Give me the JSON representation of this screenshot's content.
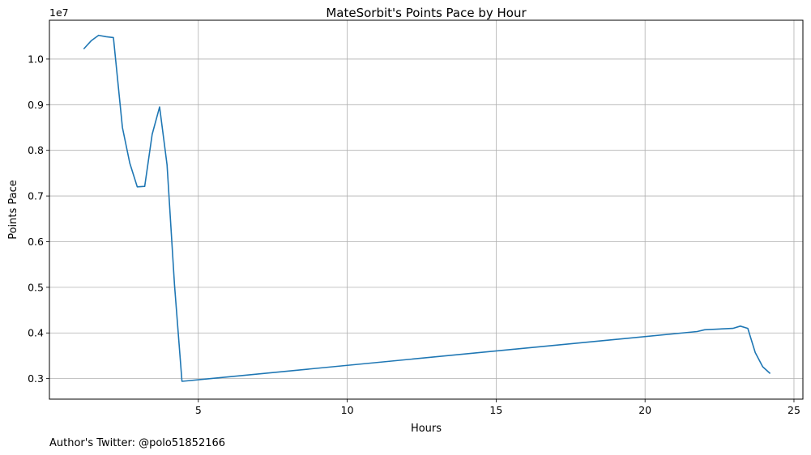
{
  "chart_data": {
    "type": "line",
    "title": "MateSorbit's Points Pace by Hour",
    "xlabel": "Hours",
    "ylabel": "Points Pace",
    "y_offset_text": "1e7",
    "footer": "Author's Twitter: @polo51852166",
    "xlim": [
      0.0,
      25.3
    ],
    "ylim": [
      2550000,
      10850000
    ],
    "xticks": [
      5,
      10,
      15,
      20,
      25
    ],
    "yticks": [
      3000000,
      4000000,
      5000000,
      6000000,
      7000000,
      8000000,
      9000000,
      10000000
    ],
    "ytick_labels": [
      "0.3",
      "0.4",
      "0.5",
      "0.6",
      "0.7",
      "0.8",
      "0.9",
      "1.0"
    ],
    "grid": true,
    "line_color": "#1f77b4",
    "series": [
      {
        "x": [
          1.15,
          1.4,
          1.65,
          1.9,
          2.15,
          2.45,
          2.7,
          2.95,
          3.2,
          3.45,
          3.7,
          3.95,
          4.2,
          4.45,
          21.75,
          22.0,
          22.95,
          23.2,
          23.45,
          23.7,
          23.95,
          24.2
        ],
        "y": [
          10220000,
          10400000,
          10520000,
          10490000,
          10470000,
          8500000,
          7720000,
          7200000,
          7210000,
          8350000,
          8950000,
          7680000,
          5050000,
          2940000,
          4030000,
          4070000,
          4100000,
          4150000,
          4100000,
          3570000,
          3260000,
          3110000
        ]
      }
    ]
  }
}
